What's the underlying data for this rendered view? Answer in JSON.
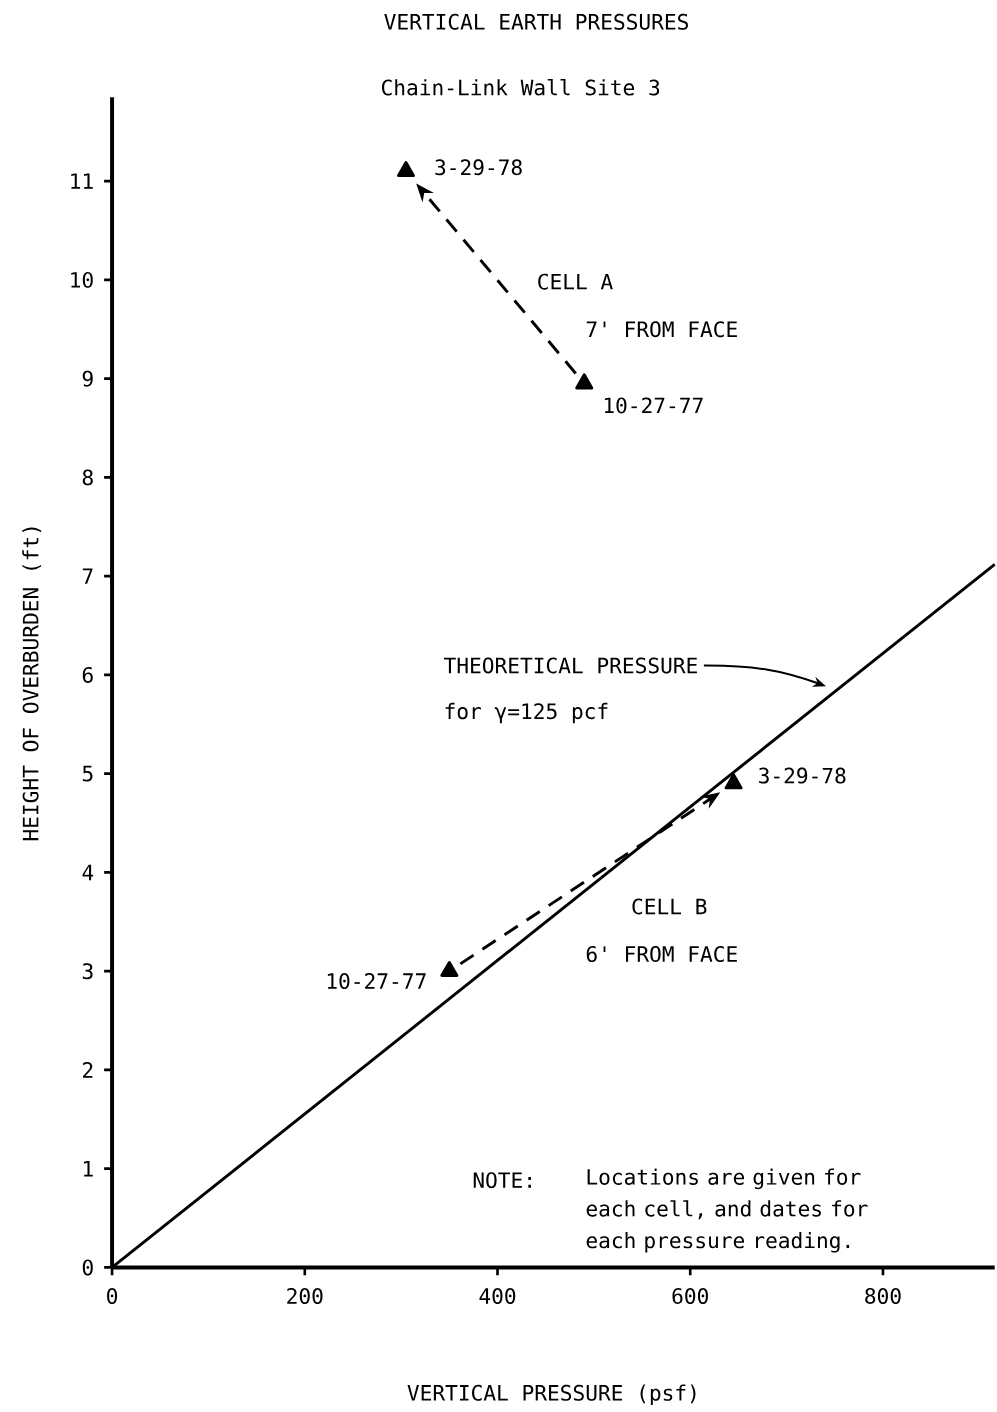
{
  "chart_data": {
    "type": "line",
    "title": "VERTICAL EARTH PRESSURES",
    "subtitle": "Chain-Link Wall Site 3",
    "xlabel": "VERTICAL PRESSURE (psf)",
    "ylabel": "HEIGHT OF OVERBURDEN (ft)",
    "xlim": [
      0,
      916
    ],
    "ylim": [
      0,
      11.85
    ],
    "xticks": [
      0,
      200,
      400,
      600,
      800
    ],
    "yticks": [
      0,
      1,
      2,
      3,
      4,
      5,
      6,
      7,
      8,
      9,
      10,
      11
    ],
    "grid": false,
    "series": [
      {
        "color": "#000000",
        "x": [
          0,
          916
        ],
        "values": [
          0,
          7.12
        ],
        "marker": "none",
        "line_style": "solid"
      },
      {
        "type": "scatter",
        "color": "#000000",
        "x": [
          490,
          305
        ],
        "values": [
          8.95,
          11.1
        ],
        "marker": "triangle"
      },
      {
        "type": "scatter",
        "color": "#000000",
        "x": [
          350,
          645
        ],
        "values": [
          3.0,
          4.9
        ],
        "marker": "triangle"
      }
    ],
    "annotations": [
      {
        "text": "3-29-78",
        "x": 305,
        "y": 11.1
      },
      {
        "text": "10-27-77",
        "x": 490,
        "y": 8.95
      },
      {
        "text": "10-27-77",
        "x": 350,
        "y": 3.0
      },
      {
        "text": "3-29-78",
        "x": 645,
        "y": 4.9
      },
      "CELL A",
      "7' FROM FACE",
      "THEORETICAL PRESSURE",
      "for γ=125 pcf",
      "CELL B",
      "6' FROM FACE",
      "NOTE:",
      "Locations are given for each cell, and dates for each pressure reading."
    ]
  }
}
